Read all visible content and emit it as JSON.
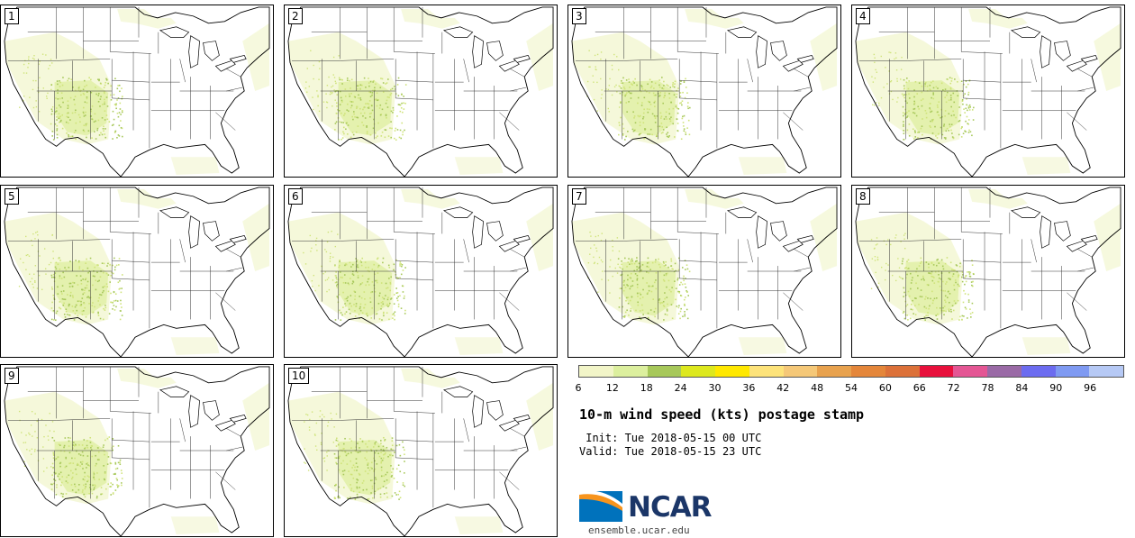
{
  "panels": [
    {
      "label": "1"
    },
    {
      "label": "2"
    },
    {
      "label": "3"
    },
    {
      "label": "4"
    },
    {
      "label": "5"
    },
    {
      "label": "6"
    },
    {
      "label": "7"
    },
    {
      "label": "8"
    },
    {
      "label": "9"
    },
    {
      "label": "10"
    }
  ],
  "colorbar": {
    "ticks": [
      "6",
      "12",
      "18",
      "24",
      "30",
      "36",
      "42",
      "48",
      "54",
      "60",
      "66",
      "72",
      "78",
      "84",
      "90",
      "96"
    ],
    "colors": [
      "#f2f5c8",
      "#dcef9e",
      "#a7c85a",
      "#dde81e",
      "#ffe800",
      "#fde37a",
      "#f5c878",
      "#e8a24e",
      "#e4863a",
      "#dc7139",
      "#e8103c",
      "#e45694",
      "#9a6aa6",
      "#6c6cf0",
      "#7f9af2",
      "#b6c9f5"
    ]
  },
  "title": "10-m wind speed (kts) postage stamp",
  "init_line": " Init: Tue 2018-05-15 00 UTC",
  "valid_line": "Valid: Tue 2018-05-15 23 UTC",
  "logo": {
    "text": "NCAR",
    "url_text": "ensemble.ucar.edu",
    "brand_color": "#1b3668",
    "swoosh_color": "#f7941d",
    "blue_color": "#0072bc"
  }
}
